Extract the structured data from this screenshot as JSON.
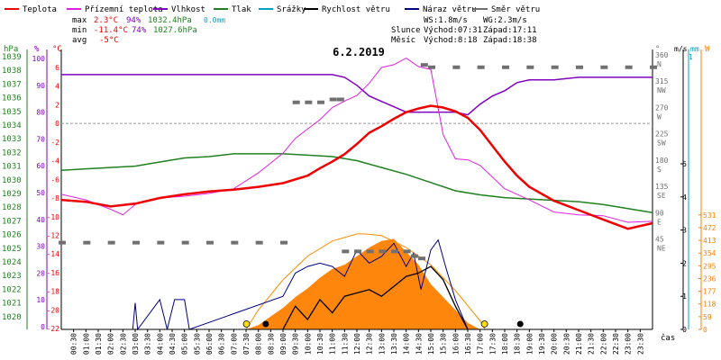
{
  "legend": [
    {
      "label": "Teplota",
      "color": "#ee0000"
    },
    {
      "label": "Přízemní teplota",
      "color": "#e020e0"
    },
    {
      "label": "Vlhkost",
      "color": "#8000c0"
    },
    {
      "label": "Tlak",
      "color": "#208020"
    },
    {
      "label": "Srážky",
      "color": "#00a0c0"
    },
    {
      "label": "Rychlost větru",
      "color": "#000000"
    },
    {
      "label": "Náraz větru",
      "color": "#000080"
    },
    {
      "label": "Směr větru",
      "color": "#707070"
    }
  ],
  "stats": {
    "max_label": "max",
    "max_temp": "2.3°C",
    "max_hum": "94%",
    "max_press": "1032.4hPa",
    "max_rain": "0.0mm",
    "min_label": "min",
    "min_temp": "-11.4°C",
    "min_hum": "74%",
    "min_press": "1027.6hPa",
    "avg_label": "avg",
    "avg_temp": "-5°C"
  },
  "info": {
    "ws": "WS:1.8m/s",
    "wg": "WG:2.3m/s",
    "sun_label": "Slunce",
    "sun_rise": "Východ:07:31",
    "sun_set": "Západ:17:11",
    "moon_label": "Měsíc",
    "moon_rise": "Východ:8:18",
    "moon_set": "Západ:18:38"
  },
  "date": "6.2.2019",
  "axis_units": {
    "press": "hPa",
    "hum": "%",
    "temp": "°C",
    "dir": "°",
    "wind": "m/s",
    "rain": "mm",
    "solar": "W",
    "time": "čas"
  },
  "axes": {
    "press": [
      "1039",
      "1038",
      "1037",
      "1036",
      "1035",
      "1034",
      "1033",
      "1032",
      "1031",
      "1030",
      "1029",
      "1028",
      "1027",
      "1026",
      "1025",
      "1024",
      "1023",
      "1022",
      "1021",
      "1020"
    ],
    "hum": [
      "100",
      "90",
      "80",
      "70",
      "60",
      "50",
      "40",
      "30",
      "20",
      "10",
      "0"
    ],
    "temp": [
      "6",
      "4",
      "2",
      "0",
      "-2",
      "-4",
      "-6",
      "-8",
      "-10",
      "-12",
      "-14",
      "-16",
      "-18",
      "-20",
      "-22"
    ],
    "dir": [
      {
        "v": "360",
        "c": "N"
      },
      {
        "v": "315",
        "c": "NW"
      },
      {
        "v": "270",
        "c": "W"
      },
      {
        "v": "225",
        "c": "SW"
      },
      {
        "v": "180",
        "c": "S"
      },
      {
        "v": "135",
        "c": "SE"
      },
      {
        "v": "90",
        "c": "E"
      },
      {
        "v": "45",
        "c": "NE"
      }
    ],
    "wind": [
      "5",
      "4",
      "3",
      "2",
      "1",
      "0"
    ],
    "rain": [
      "1"
    ],
    "solar": [
      "531",
      "472",
      "413",
      "354",
      "295",
      "236",
      "177",
      "118",
      "59",
      "0"
    ],
    "time": [
      "00:30",
      "01:00",
      "01:30",
      "02:00",
      "02:30",
      "03:00",
      "03:30",
      "04:00",
      "04:30",
      "05:00",
      "05:30",
      "06:00",
      "06:30",
      "07:00",
      "07:30",
      "08:00",
      "08:30",
      "09:00",
      "09:30",
      "10:00",
      "10:30",
      "11:00",
      "11:30",
      "12:00",
      "12:30",
      "13:00",
      "13:30",
      "14:00",
      "14:30",
      "15:00",
      "15:30",
      "16:00",
      "16:30",
      "17:00",
      "17:30",
      "18:00",
      "18:30",
      "19:00",
      "19:30",
      "20:00",
      "20:30",
      "21:00",
      "21:30",
      "22:00",
      "22:30",
      "23:00",
      "23:30"
    ]
  },
  "chart_data": {
    "type": "line",
    "title": "6.2.2019",
    "x_unit": "hour of day",
    "series": [
      {
        "name": "Teplota",
        "color": "#ee0000",
        "axis": "temp",
        "x": [
          0,
          1,
          2,
          3,
          4,
          5,
          6,
          7,
          8,
          9,
          10,
          10.5,
          11,
          11.5,
          12,
          12.5,
          13,
          13.5,
          14,
          14.5,
          15,
          15.5,
          16,
          16.5,
          17,
          17.5,
          18,
          18.5,
          19,
          20,
          21,
          22,
          23,
          24
        ],
        "y": [
          -8.2,
          -8.4,
          -8.9,
          -8.6,
          -8.0,
          -7.6,
          -7.3,
          -7.1,
          -6.8,
          -6.4,
          -5.6,
          -4.8,
          -4.1,
          -3.3,
          -2.2,
          -1.0,
          -0.3,
          0.5,
          1.2,
          1.6,
          1.9,
          1.7,
          1.3,
          0.6,
          -0.7,
          -2.4,
          -4.1,
          -5.6,
          -6.8,
          -8.3,
          -9.3,
          -10.3,
          -11.3,
          -10.7
        ]
      },
      {
        "name": "Přízemní teplota",
        "color": "#e020e0",
        "axis": "temp",
        "x": [
          0,
          1,
          2,
          2.5,
          3,
          4,
          5,
          6,
          7,
          8,
          9,
          9.5,
          10,
          10.5,
          11,
          11.5,
          12,
          12.5,
          13,
          13.5,
          14,
          14.5,
          15,
          15.5,
          16,
          16.5,
          17,
          18,
          19,
          20,
          21,
          22,
          23,
          24
        ],
        "y": [
          -7.6,
          -8.2,
          -9.2,
          -9.8,
          -8.7,
          -8.0,
          -7.8,
          -7.5,
          -7.0,
          -5.3,
          -3.2,
          -1.6,
          -0.6,
          0.4,
          1.7,
          2.4,
          3.0,
          4.3,
          6.0,
          6.3,
          7.0,
          6.1,
          5.8,
          -1.2,
          -3.8,
          -3.9,
          -4.5,
          -7.0,
          -8.2,
          -9.5,
          -9.8,
          -9.9,
          -10.6,
          -10.5
        ]
      },
      {
        "name": "Vlhkost",
        "color": "#8000c0",
        "axis": "hum",
        "x": [
          0,
          1,
          2,
          3,
          4,
          5,
          6,
          7,
          8,
          9,
          10,
          11,
          11.5,
          12,
          12.5,
          13,
          13.5,
          14,
          15,
          16,
          16.5,
          17,
          17.5,
          18,
          18.5,
          19,
          20,
          21,
          22,
          23,
          24
        ],
        "y": [
          94,
          94,
          94,
          94,
          94,
          94,
          94,
          94,
          94,
          94,
          94,
          94,
          93,
          90,
          86,
          84,
          82,
          80,
          80,
          80,
          79,
          83,
          86,
          88,
          91,
          92,
          92,
          93,
          93,
          93,
          93
        ]
      },
      {
        "name": "Tlak",
        "color": "#208020",
        "axis": "press",
        "x": [
          0,
          1,
          2,
          3,
          4,
          5,
          6,
          7,
          8,
          9,
          10,
          11,
          12,
          13,
          14,
          15,
          16,
          17,
          18,
          19,
          20,
          21,
          22,
          23,
          24
        ],
        "y": [
          1030.7,
          1030.8,
          1030.9,
          1031.0,
          1031.3,
          1031.6,
          1031.7,
          1031.9,
          1031.9,
          1031.9,
          1031.8,
          1031.7,
          1031.4,
          1030.9,
          1030.4,
          1029.8,
          1029.2,
          1028.9,
          1028.7,
          1028.6,
          1028.5,
          1028.4,
          1028.2,
          1027.9,
          1027.6
        ]
      },
      {
        "name": "Srážky",
        "color": "#00a0c0",
        "axis": "rain",
        "x": [
          0,
          24
        ],
        "y": [
          0,
          0
        ]
      },
      {
        "name": "Rychlost větru",
        "color": "#000000",
        "axis": "wind",
        "x": [
          9,
          9.5,
          10,
          10.5,
          11,
          11.5,
          12,
          12.5,
          13,
          13.5,
          14,
          14.5,
          15,
          15.5,
          16,
          16.5
        ],
        "y": [
          0,
          0.7,
          0.3,
          0.9,
          0.5,
          1.0,
          1.1,
          1.2,
          1.0,
          1.3,
          1.6,
          1.7,
          1.9,
          1.5,
          0.7,
          0
        ]
      },
      {
        "name": "Náraz větru",
        "color": "#000080",
        "axis": "wind",
        "x": [
          2.9,
          3,
          3.1,
          4,
          4.3,
          4.6,
          5,
          5.2,
          9,
          9.5,
          10,
          10.5,
          11,
          11.5,
          12,
          12.5,
          13,
          13.5,
          14,
          14.3,
          14.6,
          15,
          15.3,
          15.6,
          16,
          16.5
        ],
        "y": [
          0,
          0.8,
          0,
          0.9,
          0,
          0.9,
          0.9,
          0,
          1.0,
          1.7,
          1.9,
          2.0,
          1.9,
          1.6,
          2.4,
          2.0,
          2.2,
          2.6,
          1.9,
          2.3,
          1.2,
          2.4,
          2.7,
          1.9,
          0.9,
          0
        ]
      },
      {
        "name": "Směr větru",
        "color": "#707070",
        "axis": "dir",
        "x": [
          0,
          1,
          2,
          3,
          4,
          5,
          6,
          7,
          8,
          9,
          9.5,
          10,
          10.5,
          11,
          11.3,
          11.5,
          12,
          12.5,
          13,
          13.5,
          14,
          14.3,
          14.6,
          14.7,
          15,
          16,
          17,
          18,
          19,
          20,
          21,
          22,
          23,
          24
        ],
        "y": [
          45,
          45,
          45,
          45,
          45,
          45,
          45,
          45,
          45,
          45,
          285,
          285,
          285,
          290,
          290,
          30,
          30,
          30,
          30,
          30,
          30,
          22,
          18,
          349,
          345,
          345,
          345,
          345,
          345,
          345,
          345,
          345,
          345,
          345
        ]
      },
      {
        "name": "Sluneční záření",
        "color": "#ff7f00",
        "axis": "solar",
        "x": [
          7.5,
          8,
          8.5,
          9,
          9.5,
          10,
          10.5,
          11,
          11.5,
          12,
          12.5,
          13,
          13.5,
          14,
          14.5,
          15,
          15.5,
          16,
          16.5,
          17
        ],
        "y": [
          0,
          20,
          60,
          100,
          150,
          190,
          240,
          280,
          300,
          340,
          380,
          410,
          420,
          360,
          300,
          210,
          150,
          90,
          30,
          0
        ]
      },
      {
        "name": "Teoretické záření",
        "color": "#ff8c00",
        "axis": "solar",
        "x": [
          7.5,
          8,
          9,
          10,
          11,
          12,
          12.3,
          13,
          14,
          15,
          16,
          17,
          17.2
        ],
        "y": [
          0,
          90,
          230,
          340,
          410,
          443,
          443,
          435,
          380,
          300,
          180,
          40,
          0
        ]
      }
    ],
    "markers": {
      "sunrise": 7.52,
      "sunset": 17.18,
      "moonrise": 8.3,
      "moonset": 18.63
    }
  }
}
